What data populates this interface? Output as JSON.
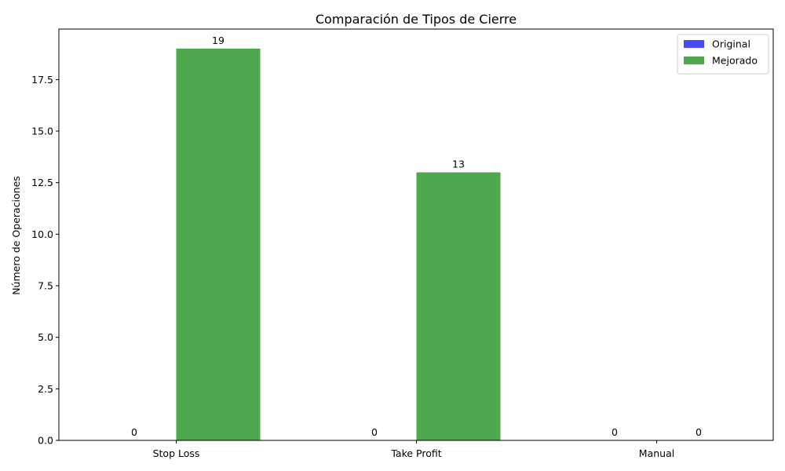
{
  "chart_data": {
    "type": "bar",
    "title": "Comparación de Tipos de Cierre",
    "xlabel": "",
    "ylabel": "Número de Operaciones",
    "categories": [
      "Stop Loss",
      "Take Profit",
      "Manual"
    ],
    "series": [
      {
        "name": "Original",
        "values": [
          0,
          0,
          0
        ],
        "color": "#4b4bf5"
      },
      {
        "name": "Mejorado",
        "values": [
          19,
          13,
          0
        ],
        "color": "#4ea84e"
      }
    ],
    "ylim": [
      0,
      19.95
    ],
    "yticks": [
      "0.0",
      "2.5",
      "5.0",
      "7.5",
      "10.0",
      "12.5",
      "15.0",
      "17.5"
    ],
    "ytick_values": [
      0,
      2.5,
      5,
      7.5,
      10,
      12.5,
      15,
      17.5
    ],
    "grid": false,
    "legend_position": "top-right"
  }
}
